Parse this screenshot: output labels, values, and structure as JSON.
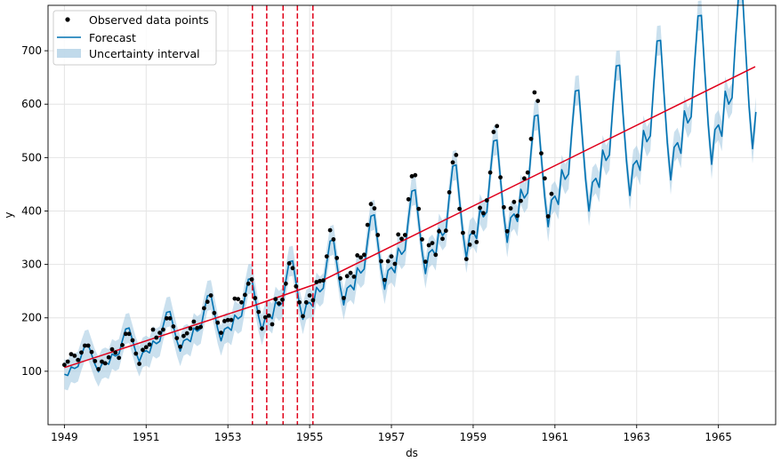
{
  "chart_data": {
    "type": "line",
    "title": "",
    "xlabel": "ds",
    "ylabel": "y",
    "xlim": [
      1948.6,
      1966.4
    ],
    "ylim": [
      0,
      785
    ],
    "grid": true,
    "legend_position": "top-left",
    "x_ticks": [
      1949,
      1951,
      1953,
      1955,
      1957,
      1959,
      1961,
      1963,
      1965
    ],
    "y_ticks": [
      100,
      200,
      300,
      400,
      500,
      600,
      700
    ],
    "legend": {
      "observed": "Observed data points",
      "forecast": "Forecast",
      "interval": "Uncertainty interval"
    },
    "colors": {
      "observed": "#000000",
      "forecast": "#0072B2",
      "interval": "#A6CBE3",
      "trend": "#E0001B",
      "changepoints": "#E0001B",
      "grid": "#E4E4E4"
    },
    "observed": {
      "start_year": 1949,
      "values": [
        112,
        118,
        132,
        129,
        121,
        135,
        148,
        148,
        136,
        119,
        104,
        118,
        115,
        126,
        141,
        135,
        125,
        149,
        170,
        170,
        158,
        133,
        114,
        140,
        145,
        150,
        178,
        163,
        172,
        178,
        199,
        199,
        184,
        162,
        146,
        166,
        171,
        180,
        193,
        181,
        183,
        218,
        230,
        242,
        209,
        191,
        172,
        194,
        196,
        196,
        236,
        235,
        229,
        243,
        264,
        272,
        237,
        211,
        180,
        201,
        204,
        188,
        235,
        227,
        234,
        264,
        302,
        293,
        259,
        229,
        203,
        229,
        242,
        233,
        267,
        269,
        270,
        315,
        364,
        347,
        312,
        274,
        237,
        278,
        284,
        277,
        317,
        313,
        318,
        374,
        413,
        405,
        355,
        306,
        271,
        306,
        315,
        301,
        356,
        348,
        355,
        422,
        465,
        467,
        404,
        347,
        305,
        336,
        340,
        318,
        362,
        348,
        363,
        435,
        491,
        505,
        404,
        359,
        310,
        337,
        360,
        342,
        406,
        396,
        420,
        472,
        548,
        559,
        463,
        407,
        362,
        405,
        417,
        391,
        419,
        461,
        472,
        535,
        622,
        606,
        508,
        461,
        390,
        432
      ]
    },
    "forecast": {
      "start_year": 1949,
      "seasonal_pattern": [
        -25,
        -33,
        -6,
        -15,
        -12,
        22,
        51,
        50,
        13,
        -22,
        -48,
        -27
      ],
      "values": [],
      "interval_halfwidth": 28
    },
    "trend": {
      "x": [
        1949.0,
        1953.6,
        1955.1,
        1965.9
      ],
      "y": [
        107,
        222,
        262,
        670
      ]
    },
    "changepoints": [
      1953.6,
      1953.95,
      1954.35,
      1954.7,
      1955.08
    ]
  }
}
